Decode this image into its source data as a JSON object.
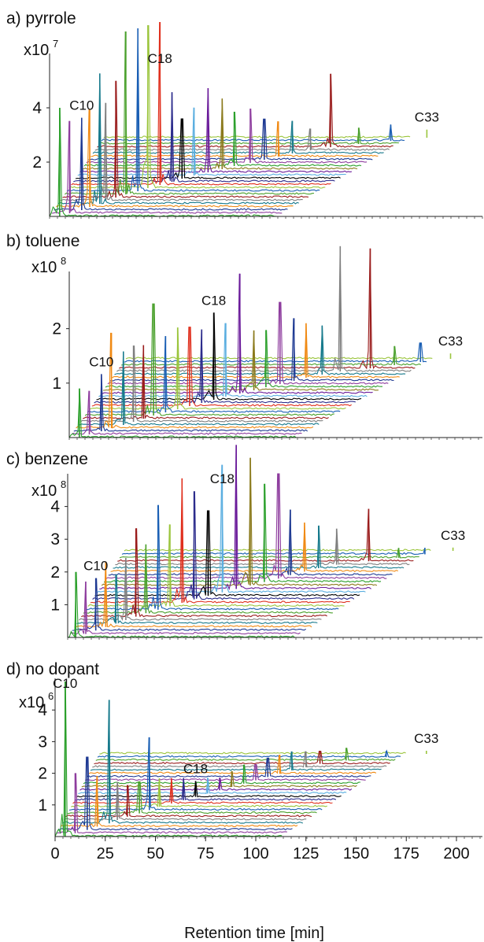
{
  "figure": {
    "xlabel": "Retention time [min]",
    "xticks": [
      0,
      25,
      50,
      75,
      100,
      125,
      150,
      175,
      200
    ]
  },
  "colors": [
    "#2ca02c",
    "#8e3d9e",
    "#1f3a93",
    "#f08a14",
    "#177a8c",
    "#7f7f7f",
    "#9a1c1c",
    "#4aa02c",
    "#1a5fb4",
    "#9bc53d",
    "#e0301e",
    "#2c2c8c",
    "#000000",
    "#5aaee0",
    "#6a1b9a",
    "#8b7a1c"
  ],
  "chart_data": [
    {
      "panel": "a) pyrrole",
      "type": "line",
      "title": "a) pyrrole",
      "y_multiplier": "x10",
      "y_exponent": "7",
      "yticks": [
        2,
        4
      ],
      "ylim": [
        0,
        6
      ],
      "xlim": [
        0,
        205
      ],
      "peak_labels": [
        {
          "text": "C10",
          "series_index": 2
        },
        {
          "text": "C18",
          "series_index": 10
        },
        {
          "text": "C33",
          "series_index": 25
        }
      ],
      "series": [
        {
          "x": 5,
          "y": 4.0
        },
        {
          "x": 10,
          "y": 3.4
        },
        {
          "x": 16,
          "y": 3.4
        },
        {
          "x": 20,
          "y": 3.6
        },
        {
          "x": 25,
          "y": 4.8
        },
        {
          "x": 28,
          "y": 3.6
        },
        {
          "x": 33,
          "y": 4.3
        },
        {
          "x": 38,
          "y": 6.0
        },
        {
          "x": 44,
          "y": 6.0
        },
        {
          "x": 49,
          "y": 6.0
        },
        {
          "x": 55,
          "y": 6.0
        },
        {
          "x": 61,
          "y": 3.3
        },
        {
          "x": 66,
          "y": 2.2
        },
        {
          "x": 72,
          "y": 2.5
        },
        {
          "x": 79,
          "y": 3.1
        },
        {
          "x": 86,
          "y": 2.6
        },
        {
          "x": 92,
          "y": 2.0
        },
        {
          "x": 100,
          "y": 2.0
        },
        {
          "x": 107,
          "y": 1.5
        },
        {
          "x": 114,
          "y": 1.3
        },
        {
          "x": 121,
          "y": 1.2
        },
        {
          "x": 130,
          "y": 0.8
        },
        {
          "x": 140,
          "y": 2.7
        },
        {
          "x": 154,
          "y": 0.6
        },
        {
          "x": 170,
          "y": 0.6
        },
        {
          "x": 188,
          "y": 0.3
        }
      ]
    },
    {
      "panel": "b) toluene",
      "type": "line",
      "title": "b) toluene",
      "y_multiplier": "x10",
      "y_exponent": "8",
      "yticks": [
        1,
        2
      ],
      "ylim": [
        0,
        3.05
      ],
      "xlim": [
        0,
        205
      ],
      "peak_labels": [
        {
          "text": "C10",
          "series_index": 2
        },
        {
          "text": "C18",
          "series_index": 12
        },
        {
          "text": "C33",
          "series_index": 25
        }
      ],
      "series": [
        {
          "x": 5,
          "y": 0.9
        },
        {
          "x": 10,
          "y": 0.8
        },
        {
          "x": 16,
          "y": 1.05
        },
        {
          "x": 21,
          "y": 1.75
        },
        {
          "x": 27,
          "y": 1.35
        },
        {
          "x": 32,
          "y": 1.4
        },
        {
          "x": 37,
          "y": 1.35
        },
        {
          "x": 42,
          "y": 2.05
        },
        {
          "x": 48,
          "y": 1.4
        },
        {
          "x": 54,
          "y": 1.5
        },
        {
          "x": 60,
          "y": 1.45
        },
        {
          "x": 66,
          "y": 1.35
        },
        {
          "x": 72,
          "y": 1.6
        },
        {
          "x": 78,
          "y": 1.35
        },
        {
          "x": 85,
          "y": 2.2
        },
        {
          "x": 92,
          "y": 1.1
        },
        {
          "x": 98,
          "y": 1.05
        },
        {
          "x": 105,
          "y": 1.5
        },
        {
          "x": 112,
          "y": 1.15
        },
        {
          "x": 118,
          "y": 1.0
        },
        {
          "x": 126,
          "y": 0.9
        },
        {
          "x": 135,
          "y": 2.3
        },
        {
          "x": 150,
          "y": 2.2
        },
        {
          "x": 162,
          "y": 0.35
        },
        {
          "x": 175,
          "y": 0.35
        },
        {
          "x": 190,
          "y": 0.1
        }
      ]
    },
    {
      "panel": "c) benzene",
      "type": "line",
      "title": "c) benzene",
      "y_multiplier": "x10",
      "y_exponent": "8",
      "yticks": [
        1,
        2,
        3,
        4
      ],
      "ylim": [
        0,
        5.0
      ],
      "xlim": [
        0,
        205
      ],
      "peak_labels": [
        {
          "text": "C10",
          "series_index": 2
        },
        {
          "text": "C18",
          "series_index": 13
        },
        {
          "text": "C33",
          "series_index": 25
        }
      ],
      "series": [
        {
          "x": 4,
          "y": 2.0
        },
        {
          "x": 9,
          "y": 1.6
        },
        {
          "x": 14,
          "y": 1.6
        },
        {
          "x": 19,
          "y": 2.0
        },
        {
          "x": 24,
          "y": 1.5
        },
        {
          "x": 29,
          "y": 1.9
        },
        {
          "x": 34,
          "y": 2.7
        },
        {
          "x": 39,
          "y": 2.1
        },
        {
          "x": 45,
          "y": 3.2
        },
        {
          "x": 51,
          "y": 2.5
        },
        {
          "x": 57,
          "y": 3.8
        },
        {
          "x": 63,
          "y": 3.3
        },
        {
          "x": 70,
          "y": 2.6
        },
        {
          "x": 77,
          "y": 3.9
        },
        {
          "x": 84,
          "y": 4.4
        },
        {
          "x": 91,
          "y": 3.9
        },
        {
          "x": 98,
          "y": 3.0
        },
        {
          "x": 105,
          "y": 3.2
        },
        {
          "x": 111,
          "y": 2.0
        },
        {
          "x": 118,
          "y": 1.5
        },
        {
          "x": 125,
          "y": 1.3
        },
        {
          "x": 134,
          "y": 1.1
        },
        {
          "x": 150,
          "y": 1.6
        },
        {
          "x": 165,
          "y": 0.3
        },
        {
          "x": 178,
          "y": 0.2
        },
        {
          "x": 192,
          "y": 0.1
        }
      ]
    },
    {
      "panel": "d) no dopant",
      "type": "line",
      "title": "d) no dopant",
      "y_multiplier": "x10",
      "y_exponent": "6",
      "yticks": [
        1,
        2,
        3,
        4
      ],
      "ylim": [
        0,
        5.0
      ],
      "xlim": [
        0,
        205
      ],
      "peak_labels": [
        {
          "text": "C10",
          "series_index": 0
        },
        {
          "text": "C18",
          "series_index": 12
        },
        {
          "text": "C33",
          "series_index": 25
        }
      ],
      "series": [
        {
          "x": 5,
          "y": 4.9
        },
        {
          "x": 10,
          "y": 1.9
        },
        {
          "x": 16,
          "y": 2.3
        },
        {
          "x": 21,
          "y": 1.6
        },
        {
          "x": 27,
          "y": 3.9
        },
        {
          "x": 31,
          "y": 1.2
        },
        {
          "x": 36,
          "y": 1.0
        },
        {
          "x": 42,
          "y": 1.0
        },
        {
          "x": 47,
          "y": 2.3
        },
        {
          "x": 52,
          "y": 0.9
        },
        {
          "x": 58,
          "y": 0.8
        },
        {
          "x": 64,
          "y": 0.7
        },
        {
          "x": 70,
          "y": 0.5
        },
        {
          "x": 76,
          "y": 0.5
        },
        {
          "x": 82,
          "y": 0.4
        },
        {
          "x": 88,
          "y": 0.5
        },
        {
          "x": 94,
          "y": 0.6
        },
        {
          "x": 100,
          "y": 0.5
        },
        {
          "x": 106,
          "y": 0.6
        },
        {
          "x": 112,
          "y": 0.6
        },
        {
          "x": 118,
          "y": 0.6
        },
        {
          "x": 125,
          "y": 0.5
        },
        {
          "x": 132,
          "y": 0.4
        },
        {
          "x": 145,
          "y": 0.4
        },
        {
          "x": 165,
          "y": 0.2
        },
        {
          "x": 185,
          "y": 0.1
        }
      ]
    }
  ]
}
